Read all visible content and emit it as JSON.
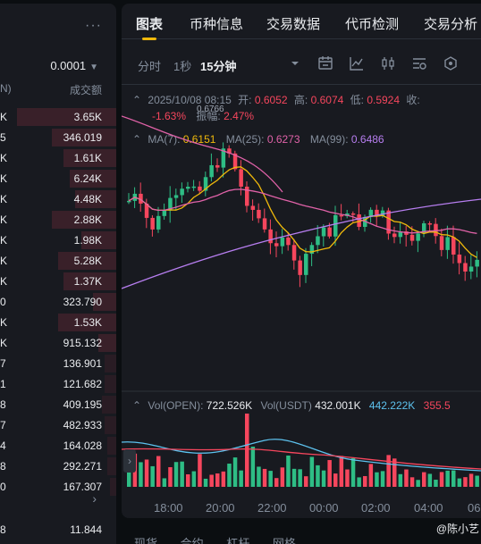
{
  "orderbook": {
    "more_label": "···",
    "precision": "0.0001",
    "header_left": "N)",
    "header_right": "成交额",
    "rows": [
      {
        "left": "K",
        "right": "3.65K",
        "color": "#f6465d"
      },
      {
        "left": "5",
        "right": "346.019",
        "color": "#eaecef"
      },
      {
        "left": "K",
        "right": "1.61K",
        "color": "#eaecef"
      },
      {
        "left": "K",
        "right": "6.24K",
        "color": "#eaecef"
      },
      {
        "left": "K",
        "right": "4.48K",
        "color": "#eaecef"
      },
      {
        "left": "K",
        "right": "2.88K",
        "color": "#eaecef"
      },
      {
        "left": "K",
        "right": "1.98K",
        "color": "#eaecef"
      },
      {
        "left": "K",
        "right": "5.28K",
        "color": "#eaecef"
      },
      {
        "left": "K",
        "right": "1.37K",
        "color": "#eaecef"
      },
      {
        "left": "0",
        "right": "323.790",
        "color": "#eaecef"
      },
      {
        "left": "K",
        "right": "1.53K",
        "color": "#eaecef"
      },
      {
        "left": "K",
        "right": "915.132",
        "color": "#eaecef"
      },
      {
        "left": "7",
        "right": "136.901",
        "color": "#eaecef"
      },
      {
        "left": "1",
        "right": "121.682",
        "color": "#eaecef"
      },
      {
        "left": "8",
        "right": "409.195",
        "color": "#eaecef"
      },
      {
        "left": "7",
        "right": "482.933",
        "color": "#eaecef"
      },
      {
        "left": "4",
        "right": "164.028",
        "color": "#eaecef"
      },
      {
        "left": "8",
        "right": "292.271",
        "color": "#eaecef"
      },
      {
        "left": "0",
        "right": "167.307",
        "color": "#eaecef"
      }
    ],
    "bar_fractions": [
      0.85,
      0.55,
      0.45,
      0.4,
      0.35,
      0.55,
      0.3,
      0.5,
      0.45,
      0.2,
      0.5,
      0.15,
      0.1,
      0.1,
      0.12,
      0.1,
      0.08,
      0.08,
      0.05
    ],
    "expand_icon": "chevron-right-icon",
    "expand_glyph": "›",
    "bottom_row": {
      "left": "8",
      "right": "11.844"
    }
  },
  "tabs": [
    "图表",
    "币种信息",
    "交易数据",
    "代币检测",
    "交易分析"
  ],
  "active_tab": 0,
  "toolbar": {
    "intervals": [
      "分时",
      "1秒",
      "15分钟"
    ],
    "active_interval": 2,
    "icons": [
      "chevron-down-icon",
      "calendar-icon",
      "line-chart-icon",
      "candle-icon",
      "settings-list-icon",
      "hexagon-icon"
    ]
  },
  "price_info": {
    "timestamp": "2025/10/08 08:15",
    "open_label": "开:",
    "open": "0.6052",
    "high_label": "高:",
    "high": "0.6074",
    "low_label": "低:",
    "low": "0.5924",
    "close_label": "收:",
    "change_pct": "-1.63%",
    "amplitude_label": "振幅:",
    "amplitude": "2.47%",
    "float_price": "0.6766"
  },
  "ma": {
    "ma7_label": "MA(7):",
    "ma7": "0.6151",
    "ma25_label": "MA(25):",
    "ma25": "0.6273",
    "ma99_label": "MA(99):",
    "ma99": "0.6486",
    "ma7_color": "#f0b90b",
    "ma25_color": "#e062a8",
    "ma99_color": "#b77ef0"
  },
  "volume": {
    "vol_open_label": "Vol(OPEN):",
    "vol_open": "722.526K",
    "vol_usdt_label": "Vol(USDT)",
    "vol_usdt": "432.001K",
    "vol_ma1": "442.222K",
    "vol_ma2": "355.5"
  },
  "x_axis": [
    "18:00",
    "20:00",
    "22:00",
    "00:00",
    "02:00",
    "04:00",
    "06"
  ],
  "colors": {
    "up": "#2ebd85",
    "down": "#f6465d",
    "bg": "#181a20"
  },
  "bottom_tabs": [
    "现货",
    "合约",
    "杠杆",
    "网格"
  ],
  "watermark": "@陈小艺"
}
